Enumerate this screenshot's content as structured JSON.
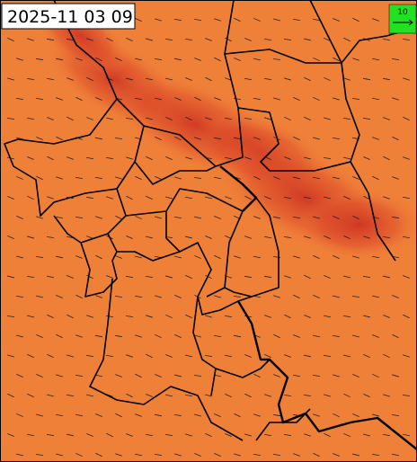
{
  "timestamp": "2025-11 03 09",
  "legend": {
    "label": "10"
  }
}
